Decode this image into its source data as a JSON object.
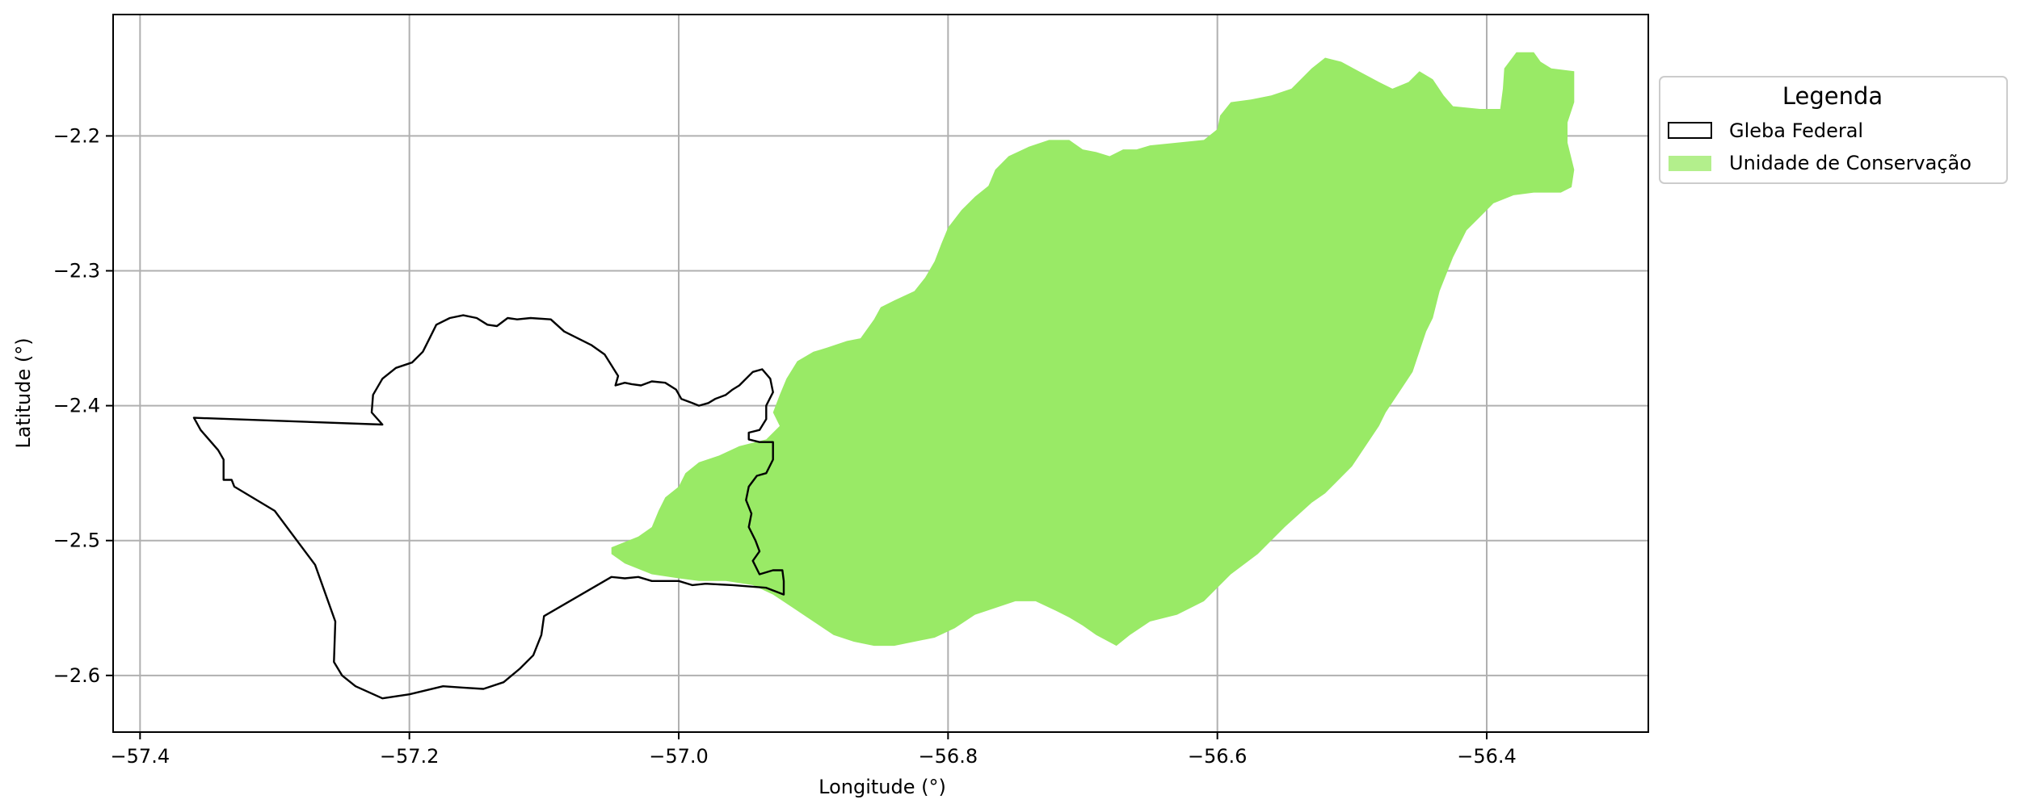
{
  "map": {
    "xlabel": "Longitude (°)",
    "ylabel": "Latitude (°)",
    "xlim": [
      -57.42,
      -56.28
    ],
    "ylim": [
      -2.642,
      -2.11
    ],
    "x_ticks": [
      -57.4,
      -57.2,
      -57.0,
      -56.8,
      -56.6,
      -56.4
    ],
    "x_tick_labels": [
      "−57.4",
      "−57.2",
      "−57.0",
      "−56.8",
      "−56.6",
      "−56.4"
    ],
    "y_ticks": [
      -2.2,
      -2.3,
      -2.4,
      -2.5,
      -2.6
    ],
    "y_tick_labels": [
      "−2.2",
      "−2.3",
      "−2.4",
      "−2.5",
      "−2.6"
    ],
    "grid": true,
    "legend_position": "outside-right-top"
  },
  "legend": {
    "title": "Legenda",
    "items": [
      {
        "label": "Gleba Federal",
        "style": "outline",
        "edge_color": "#000000",
        "fill_color": "none"
      },
      {
        "label": "Unidade de Conservação",
        "style": "filled",
        "fill_color": "#99EA66"
      }
    ]
  },
  "layers": {
    "unidade_conservacao": {
      "color": "#99EA66",
      "coordinates": [
        [
          -57.05,
          -2.505
        ],
        [
          -57.03,
          -2.497
        ],
        [
          -57.02,
          -2.49
        ],
        [
          -57.015,
          -2.478
        ],
        [
          -57.01,
          -2.468
        ],
        [
          -57.0,
          -2.46
        ],
        [
          -56.995,
          -2.45
        ],
        [
          -56.985,
          -2.442
        ],
        [
          -56.97,
          -2.437
        ],
        [
          -56.955,
          -2.43
        ],
        [
          -56.935,
          -2.425
        ],
        [
          -56.925,
          -2.415
        ],
        [
          -56.93,
          -2.405
        ],
        [
          -56.925,
          -2.392
        ],
        [
          -56.92,
          -2.38
        ],
        [
          -56.912,
          -2.367
        ],
        [
          -56.9,
          -2.36
        ],
        [
          -56.89,
          -2.357
        ],
        [
          -56.875,
          -2.352
        ],
        [
          -56.865,
          -2.35
        ],
        [
          -56.855,
          -2.336
        ],
        [
          -56.85,
          -2.327
        ],
        [
          -56.84,
          -2.322
        ],
        [
          -56.825,
          -2.315
        ],
        [
          -56.817,
          -2.305
        ],
        [
          -56.81,
          -2.293
        ],
        [
          -56.805,
          -2.28
        ],
        [
          -56.8,
          -2.268
        ],
        [
          -56.79,
          -2.255
        ],
        [
          -56.78,
          -2.245
        ],
        [
          -56.77,
          -2.237
        ],
        [
          -56.765,
          -2.225
        ],
        [
          -56.755,
          -2.215
        ],
        [
          -56.74,
          -2.208
        ],
        [
          -56.725,
          -2.203
        ],
        [
          -56.71,
          -2.203
        ],
        [
          -56.7,
          -2.21
        ],
        [
          -56.69,
          -2.212
        ],
        [
          -56.68,
          -2.215
        ],
        [
          -56.67,
          -2.21
        ],
        [
          -56.66,
          -2.21
        ],
        [
          -56.65,
          -2.207
        ],
        [
          -56.63,
          -2.205
        ],
        [
          -56.61,
          -2.203
        ],
        [
          -56.6,
          -2.195
        ],
        [
          -56.598,
          -2.185
        ],
        [
          -56.59,
          -2.175
        ],
        [
          -56.575,
          -2.173
        ],
        [
          -56.56,
          -2.17
        ],
        [
          -56.545,
          -2.165
        ],
        [
          -56.53,
          -2.15
        ],
        [
          -56.52,
          -2.142
        ],
        [
          -56.508,
          -2.145
        ],
        [
          -56.495,
          -2.152
        ],
        [
          -56.48,
          -2.16
        ],
        [
          -56.47,
          -2.165
        ],
        [
          -56.458,
          -2.16
        ],
        [
          -56.45,
          -2.152
        ],
        [
          -56.44,
          -2.158
        ],
        [
          -56.432,
          -2.17
        ],
        [
          -56.425,
          -2.178
        ],
        [
          -56.405,
          -2.18
        ],
        [
          -56.39,
          -2.18
        ],
        [
          -56.388,
          -2.165
        ],
        [
          -56.387,
          -2.15
        ],
        [
          -56.378,
          -2.138
        ],
        [
          -56.365,
          -2.138
        ],
        [
          -56.36,
          -2.145
        ],
        [
          -56.352,
          -2.15
        ],
        [
          -56.335,
          -2.152
        ],
        [
          -56.335,
          -2.175
        ],
        [
          -56.34,
          -2.19
        ],
        [
          -56.34,
          -2.205
        ],
        [
          -56.335,
          -2.225
        ],
        [
          -56.337,
          -2.238
        ],
        [
          -56.345,
          -2.242
        ],
        [
          -56.365,
          -2.242
        ],
        [
          -56.38,
          -2.244
        ],
        [
          -56.395,
          -2.25
        ],
        [
          -56.405,
          -2.26
        ],
        [
          -56.415,
          -2.27
        ],
        [
          -56.425,
          -2.29
        ],
        [
          -56.435,
          -2.315
        ],
        [
          -56.44,
          -2.335
        ],
        [
          -56.445,
          -2.345
        ],
        [
          -56.455,
          -2.375
        ],
        [
          -56.465,
          -2.39
        ],
        [
          -56.475,
          -2.405
        ],
        [
          -56.48,
          -2.415
        ],
        [
          -56.49,
          -2.43
        ],
        [
          -56.5,
          -2.445
        ],
        [
          -56.51,
          -2.455
        ],
        [
          -56.52,
          -2.465
        ],
        [
          -56.53,
          -2.472
        ],
        [
          -56.55,
          -2.49
        ],
        [
          -56.57,
          -2.51
        ],
        [
          -56.59,
          -2.525
        ],
        [
          -56.61,
          -2.545
        ],
        [
          -56.63,
          -2.555
        ],
        [
          -56.65,
          -2.56
        ],
        [
          -56.665,
          -2.57
        ],
        [
          -56.675,
          -2.578
        ],
        [
          -56.69,
          -2.57
        ],
        [
          -56.7,
          -2.563
        ],
        [
          -56.71,
          -2.557
        ],
        [
          -56.72,
          -2.552
        ],
        [
          -56.735,
          -2.545
        ],
        [
          -56.75,
          -2.545
        ],
        [
          -56.765,
          -2.55
        ],
        [
          -56.78,
          -2.555
        ],
        [
          -56.795,
          -2.565
        ],
        [
          -56.81,
          -2.572
        ],
        [
          -56.825,
          -2.575
        ],
        [
          -56.84,
          -2.578
        ],
        [
          -56.855,
          -2.578
        ],
        [
          -56.87,
          -2.575
        ],
        [
          -56.885,
          -2.57
        ],
        [
          -56.9,
          -2.56
        ],
        [
          -56.915,
          -2.55
        ],
        [
          -56.93,
          -2.54
        ],
        [
          -56.945,
          -2.533
        ],
        [
          -56.965,
          -2.53
        ],
        [
          -56.985,
          -2.53
        ],
        [
          -57.0,
          -2.528
        ],
        [
          -57.02,
          -2.525
        ],
        [
          -57.04,
          -2.517
        ],
        [
          -57.05,
          -2.51
        ]
      ]
    },
    "gleba_federal": {
      "color": "#000000",
      "coordinates": [
        [
          -57.36,
          -2.409
        ],
        [
          -57.22,
          -2.414
        ],
        [
          -57.228,
          -2.405
        ],
        [
          -57.227,
          -2.392
        ],
        [
          -57.22,
          -2.38
        ],
        [
          -57.21,
          -2.372
        ],
        [
          -57.198,
          -2.368
        ],
        [
          -57.19,
          -2.36
        ],
        [
          -57.185,
          -2.35
        ],
        [
          -57.18,
          -2.34
        ],
        [
          -57.17,
          -2.335
        ],
        [
          -57.16,
          -2.333
        ],
        [
          -57.15,
          -2.335
        ],
        [
          -57.142,
          -2.34
        ],
        [
          -57.135,
          -2.341
        ],
        [
          -57.127,
          -2.335
        ],
        [
          -57.12,
          -2.336
        ],
        [
          -57.11,
          -2.335
        ],
        [
          -57.095,
          -2.336
        ],
        [
          -57.085,
          -2.345
        ],
        [
          -57.075,
          -2.35
        ],
        [
          -57.065,
          -2.355
        ],
        [
          -57.055,
          -2.362
        ],
        [
          -57.05,
          -2.37
        ],
        [
          -57.045,
          -2.378
        ],
        [
          -57.047,
          -2.385
        ],
        [
          -57.04,
          -2.383
        ],
        [
          -57.035,
          -2.384
        ],
        [
          -57.028,
          -2.385
        ],
        [
          -57.02,
          -2.382
        ],
        [
          -57.01,
          -2.383
        ],
        [
          -57.002,
          -2.388
        ],
        [
          -56.998,
          -2.395
        ],
        [
          -56.99,
          -2.398
        ],
        [
          -56.985,
          -2.4
        ],
        [
          -56.978,
          -2.398
        ],
        [
          -56.973,
          -2.395
        ],
        [
          -56.965,
          -2.392
        ],
        [
          -56.96,
          -2.388
        ],
        [
          -56.955,
          -2.385
        ],
        [
          -56.95,
          -2.38
        ],
        [
          -56.945,
          -2.375
        ],
        [
          -56.938,
          -2.373
        ],
        [
          -56.932,
          -2.38
        ],
        [
          -56.93,
          -2.39
        ],
        [
          -56.935,
          -2.4
        ],
        [
          -56.935,
          -2.41
        ],
        [
          -56.94,
          -2.418
        ],
        [
          -56.948,
          -2.42
        ],
        [
          -56.948,
          -2.425
        ],
        [
          -56.94,
          -2.427
        ],
        [
          -56.93,
          -2.427
        ],
        [
          -56.93,
          -2.44
        ],
        [
          -56.935,
          -2.45
        ],
        [
          -56.942,
          -2.452
        ],
        [
          -56.948,
          -2.46
        ],
        [
          -56.95,
          -2.47
        ],
        [
          -56.946,
          -2.48
        ],
        [
          -56.948,
          -2.49
        ],
        [
          -56.943,
          -2.5
        ],
        [
          -56.94,
          -2.508
        ],
        [
          -56.945,
          -2.515
        ],
        [
          -56.94,
          -2.525
        ],
        [
          -56.93,
          -2.522
        ],
        [
          -56.923,
          -2.522
        ],
        [
          -56.922,
          -2.53
        ],
        [
          -56.922,
          -2.54
        ],
        [
          -56.935,
          -2.535
        ],
        [
          -56.96,
          -2.533
        ],
        [
          -56.98,
          -2.532
        ],
        [
          -56.99,
          -2.533
        ],
        [
          -57.0,
          -2.53
        ],
        [
          -57.02,
          -2.53
        ],
        [
          -57.03,
          -2.527
        ],
        [
          -57.04,
          -2.528
        ],
        [
          -57.05,
          -2.527
        ],
        [
          -57.1,
          -2.556
        ],
        [
          -57.102,
          -2.57
        ],
        [
          -57.108,
          -2.585
        ],
        [
          -57.118,
          -2.595
        ],
        [
          -57.13,
          -2.605
        ],
        [
          -57.145,
          -2.61
        ],
        [
          -57.16,
          -2.609
        ],
        [
          -57.175,
          -2.608
        ],
        [
          -57.2,
          -2.614
        ],
        [
          -57.22,
          -2.617
        ],
        [
          -57.24,
          -2.608
        ],
        [
          -57.25,
          -2.6
        ],
        [
          -57.256,
          -2.59
        ],
        [
          -57.255,
          -2.56
        ],
        [
          -57.27,
          -2.518
        ],
        [
          -57.3,
          -2.478
        ],
        [
          -57.33,
          -2.46
        ],
        [
          -57.332,
          -2.455
        ],
        [
          -57.338,
          -2.455
        ],
        [
          -57.338,
          -2.44
        ],
        [
          -57.342,
          -2.433
        ],
        [
          -57.355,
          -2.418
        ],
        [
          -57.36,
          -2.409
        ]
      ]
    }
  }
}
